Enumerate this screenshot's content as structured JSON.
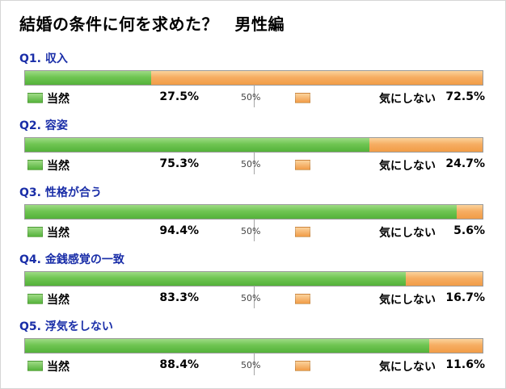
{
  "title": "結婚の条件に何を求めた？　男性編",
  "midpoint_label": "50%",
  "colors": {
    "yes": "#6fc552",
    "no": "#f6ae62",
    "question": "#1a2ea8"
  },
  "legend": {
    "yes": "当然",
    "no": "気にしない"
  },
  "questions": [
    {
      "label": "Q1. 収入",
      "yes_value": "27.5%",
      "no_value": "72.5%"
    },
    {
      "label": "Q2. 容姿",
      "yes_value": "75.3%",
      "no_value": "24.7%"
    },
    {
      "label": "Q3. 性格が合う",
      "yes_value": "94.4%",
      "no_value": "5.6%"
    },
    {
      "label": "Q4. 金銭感覚の一致",
      "yes_value": "83.3%",
      "no_value": "16.7%"
    },
    {
      "label": "Q5. 浮気をしない",
      "yes_value": "88.4%",
      "no_value": "11.6%"
    }
  ],
  "chart_data": {
    "type": "bar",
    "orientation": "horizontal",
    "stacked": true,
    "percent": true,
    "categories": [
      "Q1. 収入",
      "Q2. 容姿",
      "Q3. 性格が合う",
      "Q4. 金銭感覚の一致",
      "Q5. 浮気をしない"
    ],
    "series": [
      {
        "name": "当然",
        "values": [
          27.5,
          75.3,
          94.4,
          83.3,
          88.4
        ]
      },
      {
        "name": "気にしない",
        "values": [
          72.5,
          24.7,
          5.6,
          16.7,
          11.6
        ]
      }
    ],
    "title": "結婚の条件に何を求めた？　男性編",
    "xlim": [
      0,
      100
    ]
  }
}
